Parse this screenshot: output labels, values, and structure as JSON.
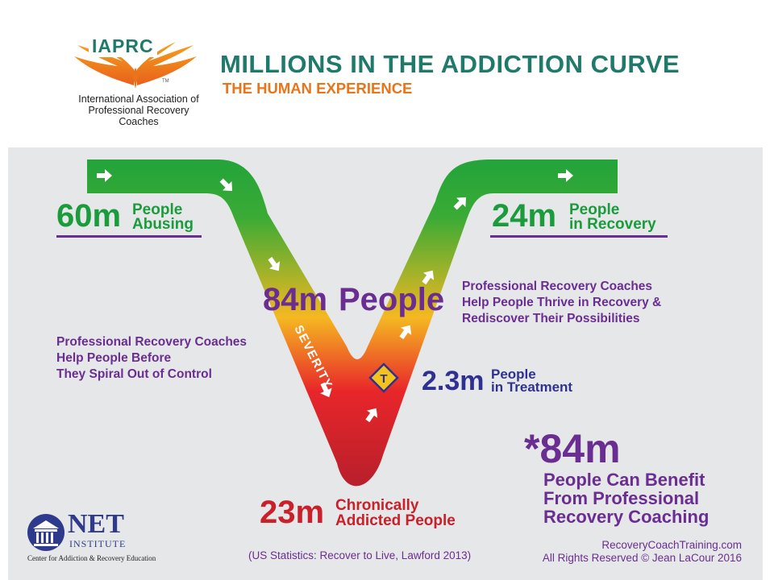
{
  "header": {
    "logo_acronym": "IAPRC",
    "logo_tm": "TM",
    "logo_org_line1": "International Association of",
    "logo_org_line2": "Professional Recovery Coaches",
    "title": "MILLIONS IN THE ADDICTION CURVE",
    "subtitle": "THE HUMAN EXPERIENCE"
  },
  "curve": {
    "severity_label": "SEVERITY",
    "treatment_marker": "T",
    "colors": {
      "top": "#22a33a",
      "middle": "#f5b821",
      "bottom": "#c8202a"
    }
  },
  "stats": {
    "abusing": {
      "number": "60m",
      "line1": "People",
      "line2": "Abusing"
    },
    "recovery": {
      "number": "24m",
      "line1": "People",
      "line2": "in Recovery"
    },
    "total": {
      "number": "84m",
      "label": "People"
    },
    "treatment": {
      "number": "2.3m",
      "line1": "People",
      "line2": "in Treatment"
    },
    "chronic": {
      "number": "23m",
      "line1": "Chronically",
      "line2": "Addicted People"
    },
    "benefit": {
      "number": "*84m",
      "line1": "People Can Benefit",
      "line2": "From Professional",
      "line3": "Recovery Coaching"
    }
  },
  "notes": {
    "left": [
      "Professional Recovery Coaches",
      "Help People Before",
      "They Spiral Out of Control"
    ],
    "right": [
      "Professional Recovery Coaches",
      "Help People Thrive in Recovery &",
      "Rediscover Their Possibilities"
    ]
  },
  "footer": {
    "net_logo_name": "NET",
    "net_logo_sub": "INSTITUTE",
    "net_logo_tagline": "Center for Addiction & Recovery Education",
    "source": "(US Statistics: Recover to Live, Lawford 2013)",
    "website": "RecoveryCoachTraining.com",
    "copyright": "All Rights Reserved © Jean LaCour 2016"
  },
  "palette": {
    "teal": "#1f7a6b",
    "orange": "#e8751a",
    "green": "#1a9b3c",
    "purple": "#6a2d91",
    "navy": "#2e3192",
    "red": "#c9202a",
    "panel": "#e6e7e8"
  }
}
